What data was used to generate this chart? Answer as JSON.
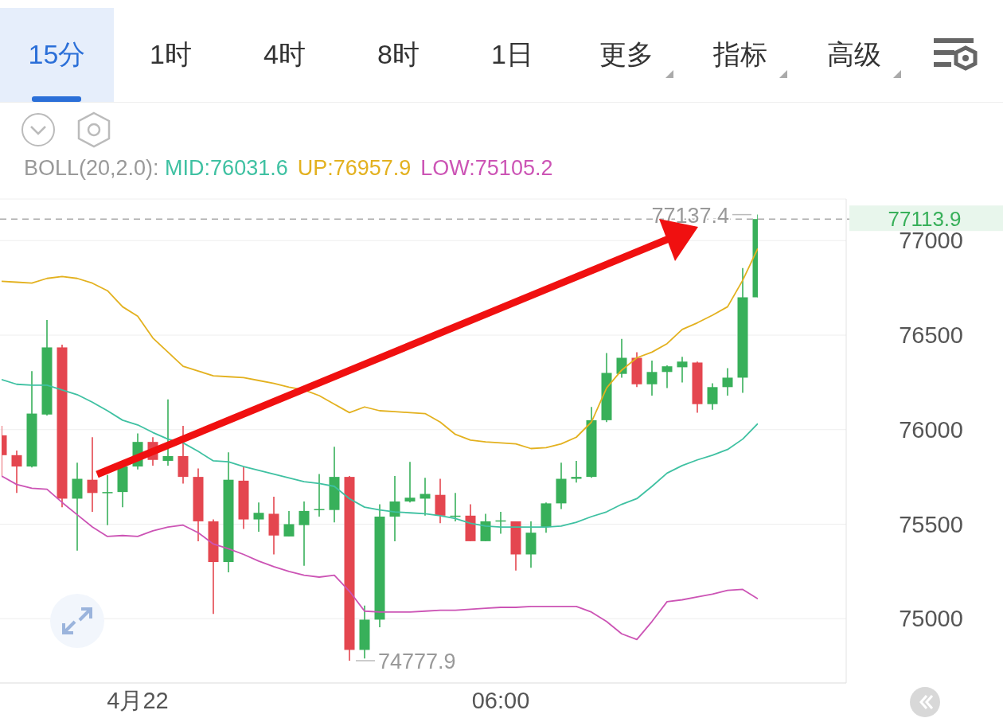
{
  "chart_data": {
    "type": "candlestick",
    "legend_title": "BOLL(20,2.0):",
    "categories": [
      null,
      null,
      null,
      null,
      null,
      null,
      null,
      null,
      null,
      "4月22",
      null,
      null,
      null,
      null,
      null,
      null,
      null,
      null,
      null,
      null,
      null,
      null,
      null,
      null,
      null,
      null,
      null,
      null,
      null,
      null,
      null,
      null,
      null,
      "06:00",
      null,
      null,
      null,
      null,
      null,
      null,
      null,
      null,
      null,
      null,
      null,
      null,
      null,
      null,
      null,
      null,
      null
    ],
    "ohlc": [
      [
        75970,
        76020,
        75750,
        75865
      ],
      [
        75865,
        75890,
        75665,
        75805
      ],
      [
        75805,
        76310,
        75800,
        76085
      ],
      [
        76080,
        76580,
        76075,
        76435
      ],
      [
        76435,
        76450,
        75590,
        75635
      ],
      [
        75635,
        75825,
        75360,
        75740
      ],
      [
        75735,
        75960,
        75565,
        75665
      ],
      [
        75665,
        75760,
        75495,
        75670
      ],
      [
        75670,
        75810,
        75590,
        75805
      ],
      [
        75805,
        75980,
        75790,
        75935
      ],
      [
        75935,
        75960,
        75810,
        75840
      ],
      [
        75835,
        76160,
        75810,
        75860
      ],
      [
        75860,
        76020,
        75715,
        75750
      ],
      [
        75750,
        75795,
        75410,
        75515
      ],
      [
        75515,
        75525,
        75025,
        75300
      ],
      [
        75300,
        75880,
        75245,
        75735
      ],
      [
        75730,
        75805,
        75475,
        75525
      ],
      [
        75525,
        75615,
        75460,
        75560
      ],
      [
        75555,
        75645,
        75340,
        75440
      ],
      [
        75435,
        75570,
        75435,
        75500
      ],
      [
        75495,
        75620,
        75280,
        75570
      ],
      [
        75575,
        75765,
        75540,
        75580
      ],
      [
        75575,
        75910,
        75510,
        75750
      ],
      [
        75750,
        75755,
        74777.9,
        74835
      ],
      [
        74835,
        75070,
        74790,
        74995
      ],
      [
        74995,
        75605,
        74955,
        75540
      ],
      [
        75540,
        75755,
        75410,
        75620
      ],
      [
        75620,
        75830,
        75615,
        75640
      ],
      [
        75635,
        75745,
        75545,
        75660
      ],
      [
        75655,
        75740,
        75505,
        75545
      ],
      [
        75540,
        75665,
        75515,
        75545
      ],
      [
        75545,
        75605,
        75410,
        75410
      ],
      [
        75410,
        75555,
        75410,
        75515
      ],
      [
        75515,
        75565,
        75450,
        75520
      ],
      [
        75515,
        75515,
        75255,
        75340
      ],
      [
        75340,
        75515,
        75270,
        75455
      ],
      [
        75485,
        75615,
        75455,
        75610
      ],
      [
        75610,
        75825,
        75580,
        75740
      ],
      [
        75740,
        75835,
        75720,
        75750
      ],
      [
        75750,
        76120,
        75745,
        76050
      ],
      [
        76050,
        76405,
        76040,
        76300
      ],
      [
        76295,
        76480,
        76275,
        76380
      ],
      [
        76380,
        76410,
        76225,
        76240
      ],
      [
        76240,
        76365,
        76180,
        76305
      ],
      [
        76305,
        76340,
        76220,
        76335
      ],
      [
        76330,
        76385,
        76250,
        76360
      ],
      [
        76355,
        76360,
        76090,
        76135
      ],
      [
        76135,
        76245,
        76105,
        76225
      ],
      [
        76225,
        76325,
        76180,
        76275
      ],
      [
        76275,
        76855,
        76195,
        76700
      ],
      [
        76700,
        77137.4,
        76700,
        77113.9
      ]
    ],
    "colors": [
      "#e4464f",
      "#e4464f",
      "#38b05a",
      "#38b05a",
      "#e4464f",
      "#38b05a",
      "#e4464f",
      "#38b05a",
      "#38b05a",
      "#38b05a",
      "#e4464f",
      "#38b05a",
      "#e4464f",
      "#e4464f",
      "#e4464f",
      "#38b05a",
      "#e4464f",
      "#38b05a",
      "#e4464f",
      "#38b05a",
      "#38b05a",
      "#38b05a",
      "#38b05a",
      "#e4464f",
      "#38b05a",
      "#38b05a",
      "#38b05a",
      "#38b05a",
      "#38b05a",
      "#e4464f",
      "#38b05a",
      "#e4464f",
      "#38b05a",
      "#38b05a",
      "#e4464f",
      "#38b05a",
      "#38b05a",
      "#38b05a",
      "#38b05a",
      "#38b05a",
      "#38b05a",
      "#38b05a",
      "#e4464f",
      "#38b05a",
      "#38b05a",
      "#38b05a",
      "#e4464f",
      "#38b05a",
      "#38b05a",
      "#38b05a",
      "#38b05a"
    ],
    "series": [
      {
        "name": "MID:76031.6",
        "type": "line",
        "color": "#3fc1a2",
        "values": [
          76265,
          76240,
          76235,
          76235,
          76210,
          76185,
          76145,
          76100,
          76050,
          76025,
          75985,
          75950,
          75930,
          75885,
          75835,
          75830,
          75805,
          75785,
          75765,
          75745,
          75725,
          75715,
          75700,
          75635,
          75590,
          75575,
          75565,
          75560,
          75555,
          75545,
          75530,
          75505,
          75490,
          75485,
          75485,
          75485,
          75485,
          75490,
          75510,
          75540,
          75565,
          75605,
          75635,
          75700,
          75770,
          75810,
          75840,
          75865,
          75895,
          75950,
          76031.6
        ]
      },
      {
        "name": "UP:76957.9",
        "type": "line",
        "color": "#e3b11f",
        "values": [
          76785,
          76780,
          76775,
          76800,
          76810,
          76800,
          76775,
          76735,
          76650,
          76600,
          76485,
          76410,
          76335,
          76310,
          76285,
          76280,
          76275,
          76260,
          76245,
          76225,
          76210,
          76180,
          76135,
          76090,
          76120,
          76100,
          76095,
          76090,
          76085,
          76040,
          75975,
          75945,
          75935,
          75930,
          75925,
          75900,
          75905,
          75925,
          75960,
          76040,
          76220,
          76315,
          76380,
          76410,
          76455,
          76530,
          76565,
          76605,
          76650,
          76790,
          76957.9
        ]
      },
      {
        "name": "LOW:75105.2",
        "type": "line",
        "color": "#cc54b5",
        "values": [
          75755,
          75710,
          75690,
          75685,
          75615,
          75550,
          75485,
          75435,
          75440,
          75435,
          75465,
          75485,
          75495,
          75455,
          75395,
          75370,
          75340,
          75305,
          75275,
          75250,
          75230,
          75220,
          75230,
          75145,
          75040,
          75035,
          75035,
          75035,
          75040,
          75045,
          75045,
          75050,
          75055,
          75060,
          75060,
          75065,
          75065,
          75065,
          75065,
          75035,
          74985,
          74920,
          74890,
          74985,
          75090,
          75100,
          75115,
          75130,
          75150,
          75155,
          75105.2
        ]
      }
    ],
    "ylim": [
      74660,
      77220
    ],
    "yticks": [
      75000,
      75500,
      76000,
      76500,
      77000
    ],
    "grid": "y",
    "legend": "top",
    "ref_lines": [
      {
        "axis": "y",
        "value": 77113.9,
        "label": "77113.9",
        "color": "#aaaaaa",
        "line_style": "dashed"
      }
    ],
    "annotations": [
      "15分",
      "1时",
      "4时",
      "8时",
      "1日",
      "更多",
      "指标",
      "高级",
      "77137.4",
      "74777.9"
    ]
  }
}
